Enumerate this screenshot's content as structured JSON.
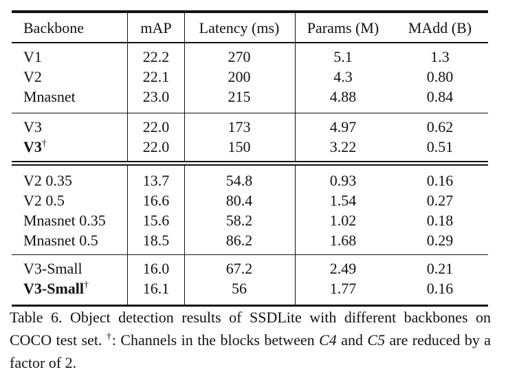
{
  "table": {
    "headers": [
      "Backbone",
      "mAP",
      "Latency (ms)",
      "Params (M)",
      "MAdd (B)"
    ],
    "groups": [
      [
        {
          "backbone": "V1",
          "mark": "",
          "bold": false,
          "map": "22.2",
          "latency": "270",
          "params": "5.1",
          "madd": "1.3"
        },
        {
          "backbone": "V2",
          "mark": "",
          "bold": false,
          "map": "22.1",
          "latency": "200",
          "params": "4.3",
          "madd": "0.80"
        },
        {
          "backbone": "Mnasnet",
          "mark": "",
          "bold": false,
          "map": "23.0",
          "latency": "215",
          "params": "4.88",
          "madd": "0.84"
        }
      ],
      [
        {
          "backbone": "V3",
          "mark": "",
          "bold": false,
          "map": "22.0",
          "latency": "173",
          "params": "4.97",
          "madd": "0.62"
        },
        {
          "backbone": "V3",
          "mark": "†",
          "bold": true,
          "map": "22.0",
          "latency": "150",
          "params": "3.22",
          "madd": "0.51"
        }
      ],
      [
        {
          "backbone": "V2 0.35",
          "mark": "",
          "bold": false,
          "map": "13.7",
          "latency": "54.8",
          "params": "0.93",
          "madd": "0.16"
        },
        {
          "backbone": "V2 0.5",
          "mark": "",
          "bold": false,
          "map": "16.6",
          "latency": "80.4",
          "params": "1.54",
          "madd": "0.27"
        },
        {
          "backbone": "Mnasnet 0.35",
          "mark": "",
          "bold": false,
          "map": "15.6",
          "latency": "58.2",
          "params": "1.02",
          "madd": "0.18"
        },
        {
          "backbone": "Mnasnet 0.5",
          "mark": "",
          "bold": false,
          "map": "18.5",
          "latency": "86.2",
          "params": "1.68",
          "madd": "0.29"
        }
      ],
      [
        {
          "backbone": "V3-Small",
          "mark": "",
          "bold": false,
          "map": "16.0",
          "latency": "67.2",
          "params": "2.49",
          "madd": "0.21"
        },
        {
          "backbone": "V3-Small",
          "mark": "†",
          "bold": true,
          "map": "16.1",
          "latency": "56",
          "params": "1.77",
          "madd": "0.16"
        }
      ]
    ]
  },
  "caption": {
    "part1": "Table 6. Object detection results of SSDLite with different backbones on COCO test set. ",
    "dagger": "†",
    "part2": ": Channels in the blocks between ",
    "c4": "C4",
    "part3": " and ",
    "c5": "C5",
    "part4": " are reduced by a factor of 2."
  }
}
